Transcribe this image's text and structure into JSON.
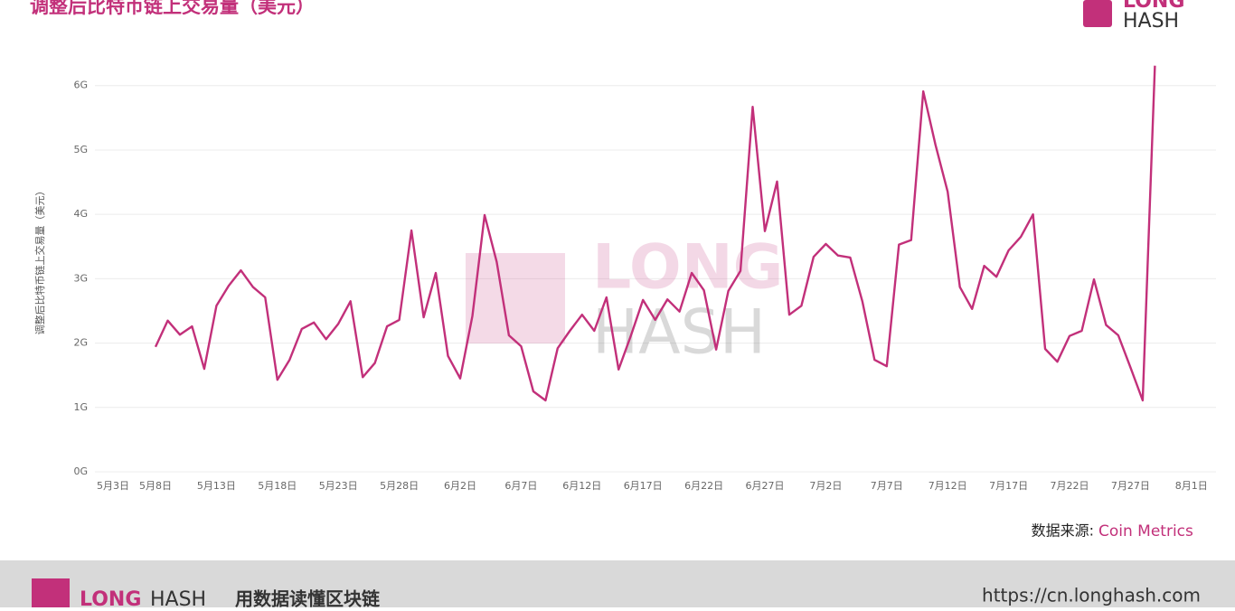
{
  "chart_data": {
    "type": "line",
    "title": "调整后比特币链上交易量（美元）",
    "y_label": "调整后比特币链上交易量（美元）",
    "color": "#c2307a",
    "grid": true,
    "ylim": [
      0,
      6.6
    ],
    "yticks": [
      {
        "value": 0,
        "label": "0G"
      },
      {
        "value": 1,
        "label": "1G"
      },
      {
        "value": 2,
        "label": "2G"
      },
      {
        "value": 3,
        "label": "3G"
      },
      {
        "value": 4,
        "label": "4G"
      },
      {
        "value": 5,
        "label": "5G"
      },
      {
        "value": 6,
        "label": "6G"
      }
    ],
    "categories": [
      "5月3日",
      null,
      null,
      null,
      null,
      "5月8日",
      null,
      null,
      null,
      null,
      "5月13日",
      null,
      null,
      null,
      null,
      "5月18日",
      null,
      null,
      null,
      null,
      "5月23日",
      null,
      null,
      null,
      null,
      "5月28日",
      null,
      null,
      null,
      null,
      "6月2日",
      null,
      null,
      null,
      null,
      "6月7日",
      null,
      null,
      null,
      null,
      "6月12日",
      null,
      null,
      null,
      null,
      "6月17日",
      null,
      null,
      null,
      null,
      "6月22日",
      null,
      null,
      null,
      null,
      "6月27日",
      null,
      null,
      null,
      null,
      "7月2日",
      null,
      null,
      null,
      null,
      "7月7日",
      null,
      null,
      null,
      null,
      "7月12日",
      null,
      null,
      null,
      null,
      "7月17日",
      null,
      null,
      null,
      null,
      "7月22日",
      null,
      null,
      null,
      null,
      "7月27日",
      null,
      null,
      null,
      null,
      "8月1日"
    ],
    "values": [
      null,
      null,
      null,
      null,
      null,
      1.94,
      2.35,
      2.13,
      2.26,
      1.6,
      2.58,
      2.89,
      3.13,
      2.87,
      2.71,
      1.43,
      1.74,
      2.22,
      2.32,
      2.06,
      2.3,
      2.65,
      1.47,
      1.69,
      2.26,
      2.36,
      3.75,
      2.4,
      3.09,
      1.8,
      1.45,
      2.42,
      3.99,
      3.26,
      2.12,
      1.95,
      1.25,
      1.11,
      1.92,
      2.19,
      2.44,
      2.19,
      2.71,
      1.59,
      2.11,
      2.67,
      2.36,
      2.68,
      2.49,
      3.09,
      2.82,
      1.9,
      2.81,
      3.12,
      5.67,
      3.74,
      4.51,
      2.44,
      2.58,
      3.34,
      3.54,
      3.36,
      3.33,
      2.65,
      1.74,
      1.64,
      3.53,
      3.6,
      5.91,
      5.08,
      4.35,
      2.87,
      2.53,
      3.2,
      3.03,
      3.44,
      3.65,
      4.0,
      1.91,
      1.71,
      2.11,
      2.19,
      2.99,
      2.28,
      2.12,
      1.62,
      1.11,
      6.31,
      null,
      null,
      null
    ],
    "source_label": "数据来源:",
    "source": "Coin Metrics"
  },
  "brand": {
    "top": "LONG",
    "bottom": "HASH"
  },
  "footer": {
    "slogan": "用数据读懂区块链",
    "url": "https://cn.longhash.com"
  }
}
